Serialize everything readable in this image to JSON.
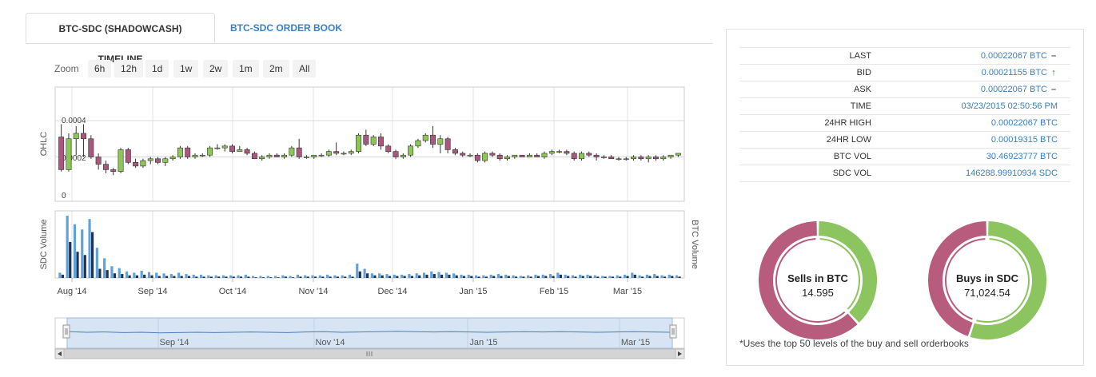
{
  "tabs": [
    {
      "label": "BTC-SDC (SHADOWCASH) TIMELINE",
      "active": true
    },
    {
      "label": "BTC-SDC ORDER BOOK",
      "active": false
    }
  ],
  "zoom": {
    "label": "Zoom",
    "buttons": [
      "6h",
      "12h",
      "1d",
      "1w",
      "2w",
      "1m",
      "2m",
      "All"
    ]
  },
  "chart_data": {
    "type": "candlestick",
    "ohlc_axis_label": "OHLC",
    "ohlc_ticks": [
      "0.0004",
      "0.0002",
      "0"
    ],
    "ylim": [
      0,
      0.0004
    ],
    "volume_left_label": "SDC Volume",
    "volume_right_label": "BTC Volume",
    "x_ticks": [
      "Aug '14",
      "Sep '14",
      "Oct '14",
      "Nov '14",
      "Dec '14",
      "Jan '15",
      "Feb '15",
      "Mar '15"
    ],
    "navigator_ticks": [
      "Sep '14",
      "Nov '14",
      "Jan '15",
      "Mar '15"
    ],
    "colors": {
      "up": "#8ec655",
      "down": "#a8587c",
      "sdc_volume": "#5fa1d8",
      "btc_volume": "#1f3450"
    },
    "ohlc": [
      [
        0.00031,
        0.00038,
        0.00012,
        0.00013
      ],
      [
        0.00013,
        0.00033,
        0.00012,
        0.0003
      ],
      [
        0.0003,
        0.00037,
        0.00021,
        0.00033
      ],
      [
        0.00033,
        0.00038,
        0.0002,
        0.0003
      ],
      [
        0.0003,
        0.00032,
        0.00019,
        0.0002
      ],
      [
        0.0002,
        0.00022,
        0.00013,
        0.00016
      ],
      [
        0.00016,
        0.00018,
        0.00011,
        0.00013
      ],
      [
        0.00013,
        0.00014,
        0.0001,
        0.00012
      ],
      [
        0.00012,
        0.00025,
        0.00011,
        0.00024
      ],
      [
        0.00024,
        0.00025,
        0.00016,
        0.00017
      ],
      [
        0.00017,
        0.00019,
        0.00014,
        0.00015
      ],
      [
        0.00015,
        0.00019,
        0.00014,
        0.00018
      ],
      [
        0.00018,
        0.0002,
        0.00016,
        0.00019
      ],
      [
        0.00019,
        0.0002,
        0.00016,
        0.00017
      ],
      [
        0.00017,
        0.0002,
        0.00015,
        0.00019
      ],
      [
        0.00019,
        0.00021,
        0.00018,
        0.0002
      ],
      [
        0.0002,
        0.00026,
        0.00019,
        0.00025
      ],
      [
        0.00025,
        0.00026,
        0.00019,
        0.0002
      ],
      [
        0.0002,
        0.00022,
        0.00019,
        0.00021
      ],
      [
        0.00021,
        0.00022,
        0.0002,
        0.00021
      ],
      [
        0.00021,
        0.00026,
        0.0002,
        0.00025
      ],
      [
        0.00025,
        0.00027,
        0.00024,
        0.00025
      ],
      [
        0.00025,
        0.00027,
        0.00023,
        0.00026
      ],
      [
        0.00026,
        0.00027,
        0.00022,
        0.00023
      ],
      [
        0.00023,
        0.00026,
        0.00023,
        0.00024
      ],
      [
        0.00024,
        0.00025,
        0.00021,
        0.00022
      ],
      [
        0.00022,
        0.00023,
        0.00019,
        0.00019
      ],
      [
        0.00019,
        0.00021,
        0.00018,
        0.0002
      ],
      [
        0.0002,
        0.00022,
        0.00019,
        0.00021
      ],
      [
        0.00021,
        0.00022,
        0.0002,
        0.0002
      ],
      [
        0.0002,
        0.00022,
        0.00019,
        0.00021
      ],
      [
        0.00021,
        0.00026,
        0.0002,
        0.00025
      ],
      [
        0.00025,
        0.0003,
        0.00019,
        0.0002
      ],
      [
        0.0002,
        0.00021,
        0.00019,
        0.0002
      ],
      [
        0.0002,
        0.00021,
        0.00019,
        0.00021
      ],
      [
        0.00021,
        0.00022,
        0.0002,
        0.00021
      ],
      [
        0.00021,
        0.00024,
        0.0002,
        0.00023
      ],
      [
        0.00023,
        0.00028,
        0.00021,
        0.00022
      ],
      [
        0.00022,
        0.00023,
        0.00021,
        0.00022
      ],
      [
        0.00022,
        0.00024,
        0.00021,
        0.00023
      ],
      [
        0.00023,
        0.00033,
        0.00022,
        0.00032
      ],
      [
        0.00032,
        0.00035,
        0.00026,
        0.00027
      ],
      [
        0.00027,
        0.00032,
        0.00026,
        0.00031
      ],
      [
        0.00031,
        0.00033,
        0.00024,
        0.00026
      ],
      [
        0.00026,
        0.00027,
        0.00022,
        0.00023
      ],
      [
        0.00023,
        0.00024,
        0.00019,
        0.0002
      ],
      [
        0.0002,
        0.00022,
        0.00019,
        0.00021
      ],
      [
        0.00021,
        0.00027,
        0.0002,
        0.00026
      ],
      [
        0.00026,
        0.0003,
        0.00025,
        0.00029
      ],
      [
        0.00029,
        0.00033,
        0.00028,
        0.00032
      ],
      [
        0.00032,
        0.00037,
        0.00025,
        0.00027
      ],
      [
        0.00027,
        0.00032,
        0.00022,
        0.0003
      ],
      [
        0.0003,
        0.00031,
        0.00022,
        0.00024
      ],
      [
        0.00024,
        0.00025,
        0.00021,
        0.00022
      ],
      [
        0.00022,
        0.00023,
        0.0002,
        0.00021
      ],
      [
        0.00021,
        0.00022,
        0.0002,
        0.00021
      ],
      [
        0.00021,
        0.00022,
        0.00017,
        0.00018
      ],
      [
        0.00018,
        0.00023,
        0.00017,
        0.00022
      ],
      [
        0.00022,
        0.00023,
        0.0002,
        0.00021
      ],
      [
        0.00021,
        0.00022,
        0.00018,
        0.00019
      ],
      [
        0.00019,
        0.00021,
        0.00018,
        0.0002
      ],
      [
        0.0002,
        0.00021,
        0.00019,
        0.00021
      ],
      [
        0.00021,
        0.00021,
        0.0002,
        0.0002
      ],
      [
        0.0002,
        0.00022,
        0.0002,
        0.00021
      ],
      [
        0.00021,
        0.00022,
        0.0002,
        0.0002
      ],
      [
        0.0002,
        0.00023,
        0.00019,
        0.00022
      ],
      [
        0.00022,
        0.00024,
        0.00021,
        0.00023
      ],
      [
        0.00023,
        0.00024,
        0.00022,
        0.00023
      ],
      [
        0.00023,
        0.00024,
        0.00021,
        0.00022
      ],
      [
        0.00022,
        0.00023,
        0.00018,
        0.00019
      ],
      [
        0.00019,
        0.00023,
        0.00018,
        0.00022
      ],
      [
        0.00022,
        0.00023,
        0.0002,
        0.00021
      ],
      [
        0.00021,
        0.00022,
        0.00018,
        0.0002
      ],
      [
        0.0002,
        0.00021,
        0.00019,
        0.0002
      ],
      [
        0.0002,
        0.00021,
        0.00019,
        0.00019
      ],
      [
        0.00019,
        0.0002,
        0.00018,
        0.00019
      ],
      [
        0.00019,
        0.0002,
        0.00018,
        0.00019
      ],
      [
        0.00019,
        0.00021,
        0.00018,
        0.0002
      ],
      [
        0.0002,
        0.00021,
        0.00018,
        0.00019
      ],
      [
        0.00019,
        0.00021,
        0.00017,
        0.0002
      ],
      [
        0.0002,
        0.00021,
        0.00018,
        0.00019
      ],
      [
        0.00019,
        0.00021,
        0.00018,
        0.0002
      ],
      [
        0.0002,
        0.00021,
        0.00019,
        0.00021
      ],
      [
        0.00021,
        0.00022,
        0.0002,
        0.00022
      ]
    ],
    "sdc_volume": [
      8,
      95,
      82,
      74,
      90,
      46,
      30,
      18,
      15,
      10,
      8,
      11,
      9,
      8,
      7,
      6,
      8,
      6,
      5,
      5,
      4,
      4,
      4,
      4,
      4,
      5,
      3,
      3,
      3,
      3,
      4,
      3,
      5,
      4,
      4,
      4,
      5,
      4,
      4,
      5,
      22,
      14,
      7,
      7,
      6,
      5,
      5,
      6,
      7,
      8,
      10,
      9,
      8,
      7,
      5,
      5,
      4,
      4,
      5,
      6,
      5,
      4,
      3,
      4,
      5,
      5,
      6,
      8,
      5,
      4,
      5,
      5,
      4,
      3,
      3,
      4,
      5,
      8,
      4,
      5,
      6,
      4,
      5,
      4
    ],
    "btc_volume": [
      5,
      55,
      40,
      35,
      70,
      14,
      12,
      7,
      6,
      4,
      4,
      5,
      4,
      3,
      3,
      3,
      3,
      3,
      2,
      2,
      2,
      2,
      2,
      2,
      2,
      2,
      1,
      1,
      1,
      1,
      2,
      1,
      2,
      2,
      2,
      2,
      2,
      2,
      2,
      2,
      10,
      7,
      4,
      4,
      3,
      3,
      3,
      3,
      4,
      5,
      6,
      5,
      5,
      4,
      3,
      3,
      2,
      2,
      3,
      3,
      3,
      2,
      2,
      2,
      3,
      3,
      3,
      5,
      3,
      2,
      3,
      3,
      2,
      2,
      2,
      2,
      3,
      5,
      2,
      3,
      3,
      2,
      3,
      2
    ],
    "navigator_series": [
      0.000216,
      0.000214,
      0.000215,
      0.000213,
      0.000214,
      0.000212,
      0.000213,
      0.000214,
      0.000213,
      0.000214,
      0.000215,
      0.000214,
      0.000213,
      0.000215,
      0.000216,
      0.000214,
      0.000215,
      0.000216,
      0.000217,
      0.000216,
      0.000215,
      0.000216,
      0.000215,
      0.000214,
      0.000215,
      0.000216,
      0.000215,
      0.000216,
      0.000215,
      0.000214,
      0.000215,
      0.000216,
      0.000215,
      0.000214
    ]
  },
  "stats": {
    "rows": [
      {
        "label": "LAST",
        "value": "0.00022067 BTC",
        "indicator": "dash"
      },
      {
        "label": "BID",
        "value": "0.00021155 BTC",
        "indicator": "up"
      },
      {
        "label": "ASK",
        "value": "0.00022067 BTC",
        "indicator": "dash"
      },
      {
        "label": "TIME",
        "value": "03/23/2015 02:50:56 PM",
        "indicator": "none"
      },
      {
        "label": "24HR HIGH",
        "value": "0.00022067 BTC",
        "indicator": "none"
      },
      {
        "label": "24HR LOW",
        "value": "0.00019315 BTC",
        "indicator": "none"
      },
      {
        "label": "BTC VOL",
        "value": "30.46923777 BTC",
        "indicator": "none"
      },
      {
        "label": "SDC VOL",
        "value": "146288.99910934 SDC",
        "indicator": "none"
      }
    ],
    "indicator_glyphs": {
      "dash": "▬",
      "up": "🡑"
    },
    "donuts": [
      {
        "label": "Sells in BTC",
        "value": "14.595",
        "fraction_red": 0.62
      },
      {
        "label": "Buys in SDC",
        "value": "71,024.54",
        "fraction_red": 0.45
      }
    ],
    "donut_colors": {
      "red": "#b85c7e",
      "green": "#8cc460"
    },
    "footnote": "*Uses the top 50 levels of the buy and sell orderbooks"
  }
}
